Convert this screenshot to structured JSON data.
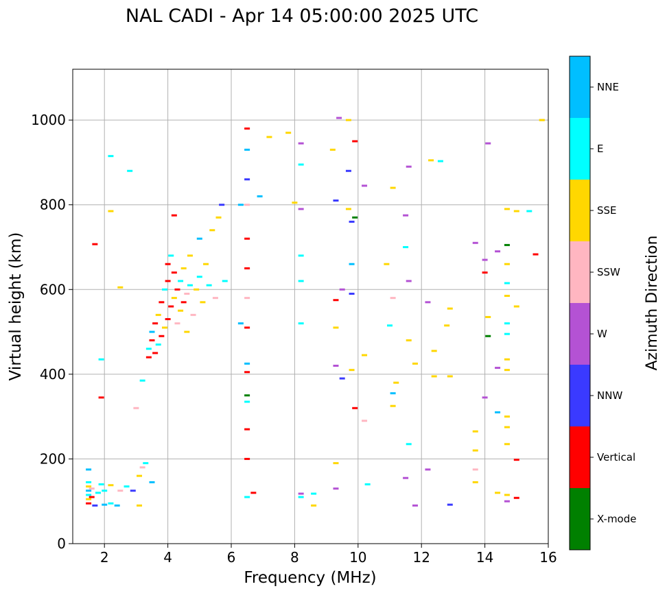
{
  "chart_data": {
    "type": "scatter",
    "title": "NAL CADI - Apr 14 05:00:00 2025 UTC",
    "xlabel": "Frequency (MHz)",
    "ylabel": "Virtual height (km)",
    "xlim": [
      1.0,
      16.0
    ],
    "ylim": [
      0,
      1120
    ],
    "xticks": [
      2,
      4,
      6,
      8,
      10,
      12,
      14,
      16
    ],
    "yticks": [
      0,
      200,
      400,
      600,
      800,
      1000
    ],
    "grid": true,
    "colorbar": {
      "label": "Azimuth Direction",
      "categories": [
        {
          "name": "X-mode",
          "color": "#008000"
        },
        {
          "name": "Vertical",
          "color": "#ff0000"
        },
        {
          "name": "NNW",
          "color": "#3a3aff"
        },
        {
          "name": "W",
          "color": "#b452d4"
        },
        {
          "name": "SSW",
          "color": "#ffb6c1"
        },
        {
          "name": "SSE",
          "color": "#ffd700"
        },
        {
          "name": "E",
          "color": "#00ffff"
        },
        {
          "name": "NNE",
          "color": "#00bfff"
        }
      ]
    },
    "points": [
      {
        "f": 1.5,
        "h": 95,
        "c": "Vertical"
      },
      {
        "f": 1.5,
        "h": 105,
        "c": "SSE"
      },
      {
        "f": 1.5,
        "h": 115,
        "c": "E"
      },
      {
        "f": 1.5,
        "h": 125,
        "c": "NNE"
      },
      {
        "f": 1.5,
        "h": 135,
        "c": "SSE"
      },
      {
        "f": 1.5,
        "h": 145,
        "c": "E"
      },
      {
        "f": 1.5,
        "h": 175,
        "c": "NNE"
      },
      {
        "f": 1.6,
        "h": 110,
        "c": "Vertical"
      },
      {
        "f": 1.6,
        "h": 130,
        "c": "SSW"
      },
      {
        "f": 1.7,
        "h": 90,
        "c": "NNW"
      },
      {
        "f": 1.8,
        "h": 120,
        "c": "E"
      },
      {
        "f": 1.9,
        "h": 140,
        "c": "E"
      },
      {
        "f": 2.0,
        "h": 92,
        "c": "NNE"
      },
      {
        "f": 2.0,
        "h": 125,
        "c": "E"
      },
      {
        "f": 2.2,
        "h": 95,
        "c": "E"
      },
      {
        "f": 2.2,
        "h": 138,
        "c": "SSE"
      },
      {
        "f": 2.4,
        "h": 90,
        "c": "NNE"
      },
      {
        "f": 2.5,
        "h": 125,
        "c": "SSW"
      },
      {
        "f": 2.7,
        "h": 135,
        "c": "E"
      },
      {
        "f": 2.9,
        "h": 125,
        "c": "NNW"
      },
      {
        "f": 3.1,
        "h": 160,
        "c": "SSE"
      },
      {
        "f": 3.1,
        "h": 90,
        "c": "SSE"
      },
      {
        "f": 3.2,
        "h": 180,
        "c": "SSW"
      },
      {
        "f": 3.3,
        "h": 190,
        "c": "E"
      },
      {
        "f": 3.5,
        "h": 145,
        "c": "NNE"
      },
      {
        "f": 1.9,
        "h": 345,
        "c": "Vertical"
      },
      {
        "f": 1.9,
        "h": 435,
        "c": "E"
      },
      {
        "f": 2.2,
        "h": 785,
        "c": "SSE"
      },
      {
        "f": 2.2,
        "h": 915,
        "c": "E"
      },
      {
        "f": 2.5,
        "h": 605,
        "c": "SSE"
      },
      {
        "f": 2.8,
        "h": 880,
        "c": "E"
      },
      {
        "f": 1.7,
        "h": 707,
        "c": "Vertical"
      },
      {
        "f": 3.2,
        "h": 385,
        "c": "E"
      },
      {
        "f": 3.0,
        "h": 320,
        "c": "SSW"
      },
      {
        "f": 3.4,
        "h": 440,
        "c": "Vertical"
      },
      {
        "f": 3.4,
        "h": 460,
        "c": "E"
      },
      {
        "f": 3.5,
        "h": 480,
        "c": "Vertical"
      },
      {
        "f": 3.5,
        "h": 500,
        "c": "NNE"
      },
      {
        "f": 3.6,
        "h": 450,
        "c": "Vertical"
      },
      {
        "f": 3.6,
        "h": 520,
        "c": "Vertical"
      },
      {
        "f": 3.7,
        "h": 470,
        "c": "E"
      },
      {
        "f": 3.7,
        "h": 540,
        "c": "SSE"
      },
      {
        "f": 3.8,
        "h": 490,
        "c": "Vertical"
      },
      {
        "f": 3.8,
        "h": 570,
        "c": "Vertical"
      },
      {
        "f": 3.9,
        "h": 510,
        "c": "SSE"
      },
      {
        "f": 3.9,
        "h": 600,
        "c": "E"
      },
      {
        "f": 4.0,
        "h": 530,
        "c": "Vertical"
      },
      {
        "f": 4.0,
        "h": 620,
        "c": "Vertical"
      },
      {
        "f": 4.0,
        "h": 660,
        "c": "Vertical"
      },
      {
        "f": 4.1,
        "h": 560,
        "c": "Vertical"
      },
      {
        "f": 4.1,
        "h": 680,
        "c": "E"
      },
      {
        "f": 4.2,
        "h": 580,
        "c": "SSE"
      },
      {
        "f": 4.2,
        "h": 640,
        "c": "Vertical"
      },
      {
        "f": 4.2,
        "h": 775,
        "c": "Vertical"
      },
      {
        "f": 4.3,
        "h": 520,
        "c": "SSW"
      },
      {
        "f": 4.3,
        "h": 600,
        "c": "Vertical"
      },
      {
        "f": 4.4,
        "h": 550,
        "c": "SSE"
      },
      {
        "f": 4.4,
        "h": 620,
        "c": "E"
      },
      {
        "f": 4.5,
        "h": 570,
        "c": "Vertical"
      },
      {
        "f": 4.5,
        "h": 650,
        "c": "SSE"
      },
      {
        "f": 4.6,
        "h": 590,
        "c": "SSW"
      },
      {
        "f": 4.6,
        "h": 500,
        "c": "SSE"
      },
      {
        "f": 4.7,
        "h": 610,
        "c": "E"
      },
      {
        "f": 4.7,
        "h": 680,
        "c": "SSE"
      },
      {
        "f": 4.8,
        "h": 540,
        "c": "SSW"
      },
      {
        "f": 4.9,
        "h": 600,
        "c": "SSE"
      },
      {
        "f": 5.0,
        "h": 630,
        "c": "E"
      },
      {
        "f": 5.0,
        "h": 720,
        "c": "NNE"
      },
      {
        "f": 5.1,
        "h": 570,
        "c": "SSE"
      },
      {
        "f": 5.2,
        "h": 660,
        "c": "SSE"
      },
      {
        "f": 5.3,
        "h": 610,
        "c": "E"
      },
      {
        "f": 5.4,
        "h": 740,
        "c": "SSE"
      },
      {
        "f": 5.5,
        "h": 580,
        "c": "SSW"
      },
      {
        "f": 5.6,
        "h": 770,
        "c": "SSE"
      },
      {
        "f": 5.7,
        "h": 800,
        "c": "NNW"
      },
      {
        "f": 5.8,
        "h": 620,
        "c": "E"
      },
      {
        "f": 6.5,
        "h": 980,
        "c": "Vertical"
      },
      {
        "f": 6.5,
        "h": 930,
        "c": "NNE"
      },
      {
        "f": 6.5,
        "h": 860,
        "c": "NNW"
      },
      {
        "f": 6.5,
        "h": 800,
        "c": "SSW"
      },
      {
        "f": 6.5,
        "h": 720,
        "c": "Vertical"
      },
      {
        "f": 6.5,
        "h": 650,
        "c": "Vertical"
      },
      {
        "f": 6.5,
        "h": 580,
        "c": "SSW"
      },
      {
        "f": 6.5,
        "h": 510,
        "c": "Vertical"
      },
      {
        "f": 6.5,
        "h": 425,
        "c": "NNE"
      },
      {
        "f": 6.5,
        "h": 405,
        "c": "Vertical"
      },
      {
        "f": 6.5,
        "h": 350,
        "c": "X-mode"
      },
      {
        "f": 6.5,
        "h": 335,
        "c": "E"
      },
      {
        "f": 6.5,
        "h": 270,
        "c": "Vertical"
      },
      {
        "f": 6.5,
        "h": 200,
        "c": "Vertical"
      },
      {
        "f": 6.5,
        "h": 110,
        "c": "E"
      },
      {
        "f": 6.3,
        "h": 520,
        "c": "NNE"
      },
      {
        "f": 6.3,
        "h": 800,
        "c": "NNE"
      },
      {
        "f": 6.7,
        "h": 120,
        "c": "Vertical"
      },
      {
        "f": 6.9,
        "h": 820,
        "c": "NNE"
      },
      {
        "f": 7.2,
        "h": 960,
        "c": "SSE"
      },
      {
        "f": 7.8,
        "h": 970,
        "c": "SSE"
      },
      {
        "f": 8.0,
        "h": 805,
        "c": "SSE"
      },
      {
        "f": 8.2,
        "h": 945,
        "c": "W"
      },
      {
        "f": 8.2,
        "h": 895,
        "c": "E"
      },
      {
        "f": 8.2,
        "h": 790,
        "c": "W"
      },
      {
        "f": 8.2,
        "h": 680,
        "c": "E"
      },
      {
        "f": 8.2,
        "h": 620,
        "c": "E"
      },
      {
        "f": 8.2,
        "h": 520,
        "c": "E"
      },
      {
        "f": 8.2,
        "h": 118,
        "c": "W"
      },
      {
        "f": 8.2,
        "h": 110,
        "c": "E"
      },
      {
        "f": 8.6,
        "h": 118,
        "c": "E"
      },
      {
        "f": 8.6,
        "h": 90,
        "c": "SSE"
      },
      {
        "f": 9.2,
        "h": 930,
        "c": "SSE"
      },
      {
        "f": 9.3,
        "h": 810,
        "c": "NNW"
      },
      {
        "f": 9.3,
        "h": 575,
        "c": "Vertical"
      },
      {
        "f": 9.3,
        "h": 510,
        "c": "SSE"
      },
      {
        "f": 9.3,
        "h": 420,
        "c": "W"
      },
      {
        "f": 9.3,
        "h": 190,
        "c": "SSE"
      },
      {
        "f": 9.3,
        "h": 130,
        "c": "W"
      },
      {
        "f": 9.4,
        "h": 1005,
        "c": "W"
      },
      {
        "f": 9.5,
        "h": 600,
        "c": "W"
      },
      {
        "f": 9.5,
        "h": 390,
        "c": "NNW"
      },
      {
        "f": 9.7,
        "h": 1000,
        "c": "SSE"
      },
      {
        "f": 9.7,
        "h": 880,
        "c": "NNW"
      },
      {
        "f": 9.7,
        "h": 790,
        "c": "SSE"
      },
      {
        "f": 9.8,
        "h": 760,
        "c": "NNW"
      },
      {
        "f": 9.8,
        "h": 660,
        "c": "NNE"
      },
      {
        "f": 9.8,
        "h": 590,
        "c": "NNW"
      },
      {
        "f": 9.8,
        "h": 410,
        "c": "SSE"
      },
      {
        "f": 9.9,
        "h": 950,
        "c": "Vertical"
      },
      {
        "f": 9.9,
        "h": 320,
        "c": "Vertical"
      },
      {
        "f": 9.9,
        "h": 770,
        "c": "X-mode"
      },
      {
        "f": 10.2,
        "h": 845,
        "c": "W"
      },
      {
        "f": 10.2,
        "h": 445,
        "c": "SSE"
      },
      {
        "f": 10.2,
        "h": 290,
        "c": "SSW"
      },
      {
        "f": 10.3,
        "h": 140,
        "c": "E"
      },
      {
        "f": 10.9,
        "h": 660,
        "c": "SSE"
      },
      {
        "f": 11.0,
        "h": 515,
        "c": "E"
      },
      {
        "f": 11.1,
        "h": 840,
        "c": "SSE"
      },
      {
        "f": 11.1,
        "h": 580,
        "c": "SSW"
      },
      {
        "f": 11.1,
        "h": 355,
        "c": "NNE"
      },
      {
        "f": 11.1,
        "h": 325,
        "c": "SSE"
      },
      {
        "f": 11.2,
        "h": 380,
        "c": "SSE"
      },
      {
        "f": 11.5,
        "h": 775,
        "c": "W"
      },
      {
        "f": 11.5,
        "h": 700,
        "c": "E"
      },
      {
        "f": 11.5,
        "h": 155,
        "c": "W"
      },
      {
        "f": 11.6,
        "h": 890,
        "c": "W"
      },
      {
        "f": 11.6,
        "h": 620,
        "c": "W"
      },
      {
        "f": 11.6,
        "h": 480,
        "c": "SSE"
      },
      {
        "f": 11.6,
        "h": 235,
        "c": "E"
      },
      {
        "f": 11.8,
        "h": 425,
        "c": "SSE"
      },
      {
        "f": 11.8,
        "h": 90,
        "c": "W"
      },
      {
        "f": 12.2,
        "h": 570,
        "c": "W"
      },
      {
        "f": 12.2,
        "h": 175,
        "c": "W"
      },
      {
        "f": 12.3,
        "h": 905,
        "c": "SSE"
      },
      {
        "f": 12.4,
        "h": 455,
        "c": "SSE"
      },
      {
        "f": 12.4,
        "h": 395,
        "c": "SSE"
      },
      {
        "f": 12.6,
        "h": 903,
        "c": "E"
      },
      {
        "f": 12.8,
        "h": 515,
        "c": "SSE"
      },
      {
        "f": 12.9,
        "h": 555,
        "c": "SSE"
      },
      {
        "f": 12.9,
        "h": 395,
        "c": "SSE"
      },
      {
        "f": 12.9,
        "h": 92,
        "c": "NNW"
      },
      {
        "f": 13.7,
        "h": 710,
        "c": "W"
      },
      {
        "f": 13.7,
        "h": 265,
        "c": "SSE"
      },
      {
        "f": 13.7,
        "h": 220,
        "c": "SSE"
      },
      {
        "f": 13.7,
        "h": 175,
        "c": "SSW"
      },
      {
        "f": 13.7,
        "h": 145,
        "c": "SSE"
      },
      {
        "f": 14.0,
        "h": 670,
        "c": "W"
      },
      {
        "f": 14.0,
        "h": 640,
        "c": "Vertical"
      },
      {
        "f": 14.0,
        "h": 345,
        "c": "W"
      },
      {
        "f": 14.1,
        "h": 945,
        "c": "W"
      },
      {
        "f": 14.1,
        "h": 535,
        "c": "SSE"
      },
      {
        "f": 14.1,
        "h": 490,
        "c": "X-mode"
      },
      {
        "f": 14.4,
        "h": 690,
        "c": "W"
      },
      {
        "f": 14.4,
        "h": 415,
        "c": "W"
      },
      {
        "f": 14.4,
        "h": 310,
        "c": "NNE"
      },
      {
        "f": 14.4,
        "h": 120,
        "c": "SSE"
      },
      {
        "f": 14.7,
        "h": 790,
        "c": "SSE"
      },
      {
        "f": 14.7,
        "h": 705,
        "c": "X-mode"
      },
      {
        "f": 14.7,
        "h": 660,
        "c": "SSE"
      },
      {
        "f": 14.7,
        "h": 615,
        "c": "E"
      },
      {
        "f": 14.7,
        "h": 585,
        "c": "SSE"
      },
      {
        "f": 14.7,
        "h": 520,
        "c": "E"
      },
      {
        "f": 14.7,
        "h": 495,
        "c": "E"
      },
      {
        "f": 14.7,
        "h": 435,
        "c": "SSE"
      },
      {
        "f": 14.7,
        "h": 410,
        "c": "SSE"
      },
      {
        "f": 14.7,
        "h": 300,
        "c": "SSE"
      },
      {
        "f": 14.7,
        "h": 275,
        "c": "SSE"
      },
      {
        "f": 14.7,
        "h": 235,
        "c": "SSE"
      },
      {
        "f": 14.7,
        "h": 115,
        "c": "SSE"
      },
      {
        "f": 14.7,
        "h": 100,
        "c": "W"
      },
      {
        "f": 15.0,
        "h": 785,
        "c": "SSE"
      },
      {
        "f": 15.0,
        "h": 560,
        "c": "SSE"
      },
      {
        "f": 15.0,
        "h": 198,
        "c": "Vertical"
      },
      {
        "f": 15.0,
        "h": 108,
        "c": "Vertical"
      },
      {
        "f": 15.4,
        "h": 785,
        "c": "E"
      },
      {
        "f": 15.6,
        "h": 683,
        "c": "Vertical"
      },
      {
        "f": 15.8,
        "h": 1000,
        "c": "SSE"
      },
      {
        "f": 15.8,
        "h": 1000,
        "c": "SSE"
      }
    ]
  }
}
